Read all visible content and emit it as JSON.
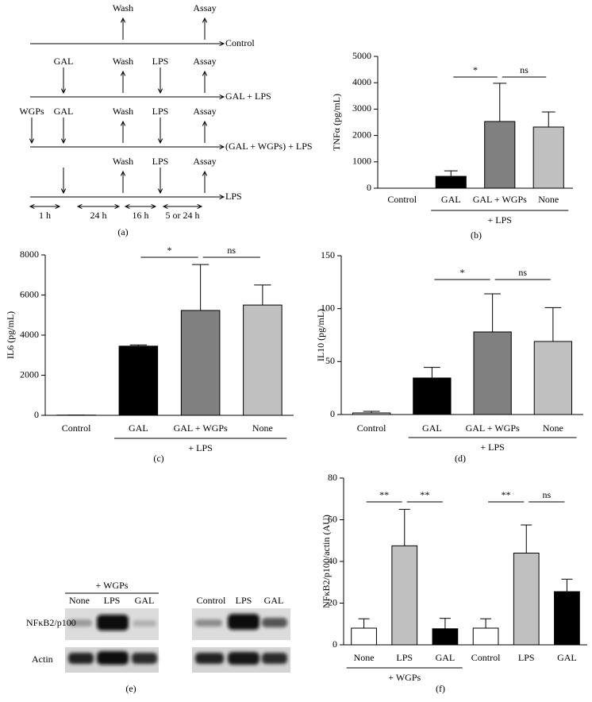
{
  "panel_labels": [
    "(a)",
    "(b)",
    "(c)",
    "(d)",
    "(e)",
    "(f)"
  ],
  "diagram": {
    "rows": [
      {
        "label": "Control",
        "events": [
          "Wash",
          "Assay"
        ]
      },
      {
        "label": "GAL + LPS",
        "events": [
          "GAL",
          "Wash",
          "LPS",
          "Assay"
        ]
      },
      {
        "label": "(GAL + WGPs) + LPS",
        "events": [
          "WGPs",
          "GAL",
          "Wash",
          "LPS",
          "Assay"
        ]
      },
      {
        "label": "LPS",
        "events": [
          "Wash",
          "LPS",
          "Assay"
        ]
      }
    ],
    "intervals": [
      "1 h",
      "24 h",
      "16 h",
      "5 or 24 h"
    ]
  },
  "blot": {
    "group_label": "+ WGPs",
    "lanes": [
      "None",
      "LPS",
      "GAL",
      "Control",
      "LPS",
      "GAL"
    ],
    "rows": [
      "NFκB2/p100",
      "Actin"
    ]
  },
  "chart_data": [
    {
      "type": "bar",
      "y_label": "TNFα (pg/mL)",
      "categories": [
        "Control",
        "GAL",
        "GAL + WGPs",
        "None"
      ],
      "values": [
        0,
        450,
        2530,
        2320
      ],
      "errors": [
        0,
        210,
        1450,
        570
      ],
      "colors": [
        "#ffffff",
        "#000000",
        "#808080",
        "#c0c0c0"
      ],
      "ylim": [
        0,
        5000
      ],
      "yticks": [
        0,
        1000,
        2000,
        3000,
        4000,
        5000
      ],
      "group_label": "+ LPS",
      "annotations": [
        "*",
        "ns"
      ]
    },
    {
      "type": "bar",
      "y_label": "IL6 (pg/mL)",
      "categories": [
        "Control",
        "GAL",
        "GAL + WGPs",
        "None"
      ],
      "values": [
        10,
        3450,
        5230,
        5500
      ],
      "errors": [
        0,
        60,
        2290,
        1000
      ],
      "colors": [
        "#ffffff",
        "#000000",
        "#808080",
        "#c0c0c0"
      ],
      "ylim": [
        0,
        8000
      ],
      "yticks": [
        0,
        2000,
        4000,
        6000,
        8000
      ],
      "group_label": "+ LPS",
      "annotations": [
        "*",
        "ns"
      ]
    },
    {
      "type": "bar",
      "y_label": "IL10 (pg/mL)",
      "categories": [
        "Control",
        "GAL",
        "GAL + WGPs",
        "None"
      ],
      "values": [
        1.5,
        34.5,
        78,
        69
      ],
      "errors": [
        1.5,
        10,
        36,
        32
      ],
      "colors": [
        "#d8d8d8",
        "#000000",
        "#808080",
        "#c0c0c0"
      ],
      "ylim": [
        0,
        150
      ],
      "yticks": [
        0,
        50,
        100,
        150
      ],
      "group_label": "+ LPS",
      "annotations": [
        "*",
        "ns"
      ]
    },
    {
      "type": "bar",
      "y_label": "NFκB2/p100/actin (AU)",
      "categories": [
        "None",
        "LPS",
        "GAL",
        "Control",
        "LPS",
        "GAL"
      ],
      "values": [
        8,
        47.5,
        7.7,
        8,
        44,
        25.5
      ],
      "errors": [
        4.5,
        17.5,
        5,
        4.5,
        13.5,
        6
      ],
      "colors": [
        "#ffffff",
        "#c0c0c0",
        "#000000",
        "#ffffff",
        "#c0c0c0",
        "#000000"
      ],
      "ylim": [
        0,
        80
      ],
      "yticks": [
        0,
        20,
        40,
        60,
        80
      ],
      "group_label": "+ WGPs",
      "annotations": [
        "**",
        "**",
        "**",
        "ns"
      ]
    }
  ]
}
